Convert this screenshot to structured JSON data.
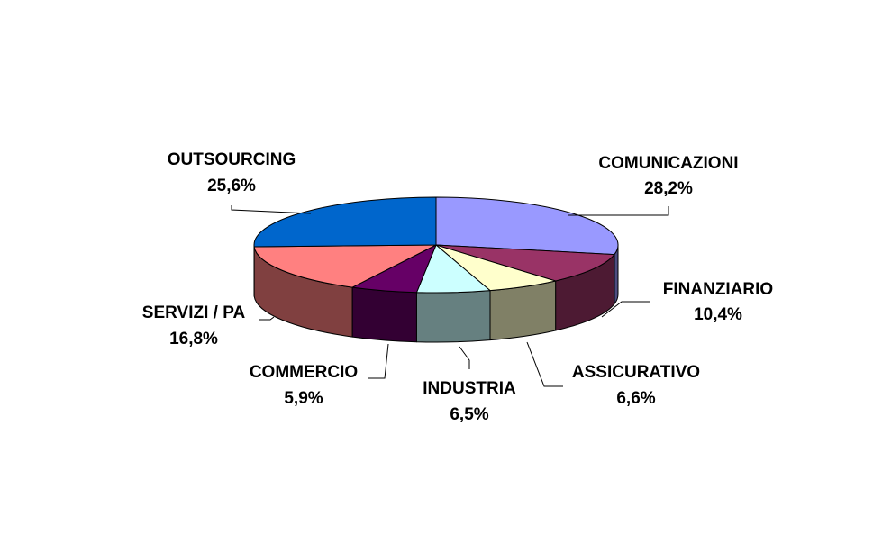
{
  "chart_data": {
    "type": "pie",
    "style": "3d",
    "title": "",
    "categories": [
      "COMUNICAZIONI",
      "FINANZIARIO",
      "ASSICURATIVO",
      "INDUSTRIA",
      "COMMERCIO",
      "SERVIZI / PA",
      "OUTSOURCING"
    ],
    "values": [
      28.2,
      10.4,
      6.6,
      6.5,
      5.9,
      16.8,
      25.6
    ],
    "value_labels": [
      "28,2%",
      "10,4%",
      "6,6%",
      "6,5%",
      "5,9%",
      "16,8%",
      "25,6%"
    ],
    "colors": [
      "#9999ff",
      "#993366",
      "#ffffcc",
      "#ccffff",
      "#660066",
      "#ff8080",
      "#0066cc"
    ],
    "legend": "none",
    "labels_with_leader_lines": true
  }
}
